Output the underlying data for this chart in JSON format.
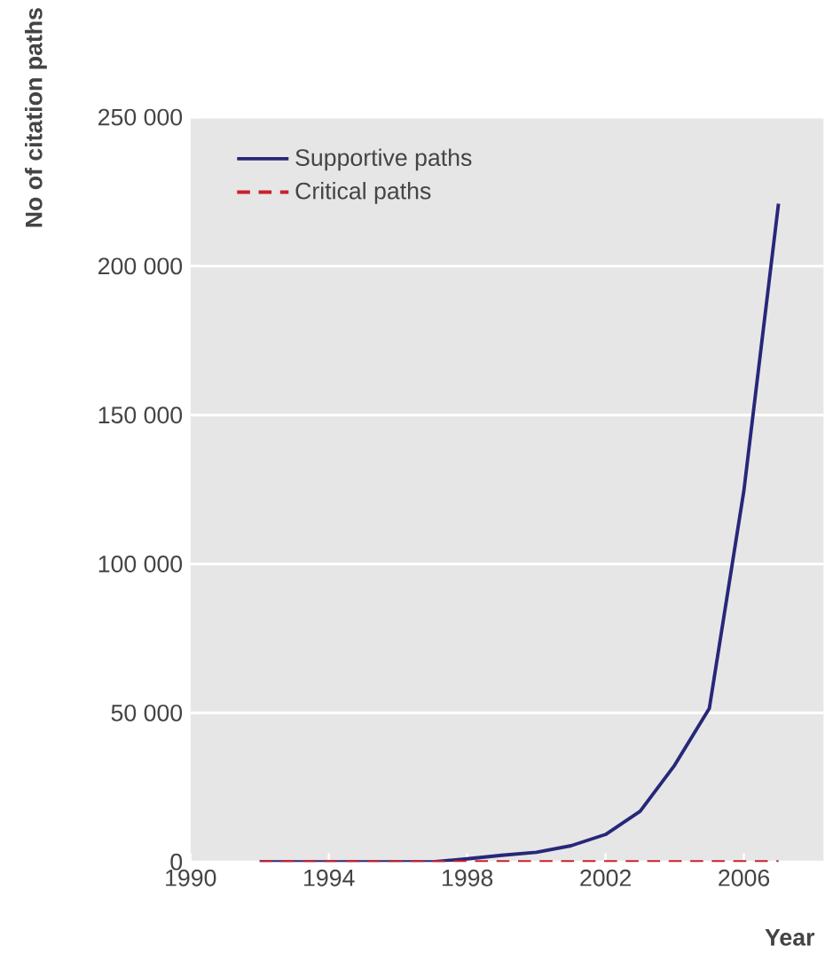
{
  "chart_data": {
    "type": "line",
    "xlabel": "Year",
    "ylabel": "No of citation paths",
    "x": [
      1992,
      1993,
      1994,
      1995,
      1996,
      1997,
      1998,
      1999,
      2000,
      2001,
      2002,
      2003,
      2004,
      2005,
      2006,
      2007
    ],
    "series": [
      {
        "name": "Supportive paths",
        "color": "#27277a",
        "line_style": "solid",
        "values": [
          0,
          0,
          0,
          0,
          0,
          0,
          1000,
          2200,
          3200,
          5400,
          9200,
          17000,
          32500,
          51500,
          124700,
          221000
        ]
      },
      {
        "name": "Critical paths",
        "color": "#c8202a",
        "line_style": "dashed",
        "values": [
          0,
          0,
          0,
          0,
          0,
          0,
          0,
          0,
          0,
          0,
          0,
          0,
          0,
          0,
          0,
          0
        ]
      }
    ],
    "xlim": [
      1990,
      2008.3
    ],
    "xticks": [
      1990,
      1994,
      1998,
      2002,
      2006
    ],
    "ylim": [
      0,
      250000
    ],
    "yticks": [
      {
        "value": 0,
        "label": "0"
      },
      {
        "value": 50000,
        "label": "50 000"
      },
      {
        "value": 100000,
        "label": "100 000"
      },
      {
        "value": 150000,
        "label": "150 000"
      },
      {
        "value": 200000,
        "label": "200 000"
      },
      {
        "value": 250000,
        "label": "250 000"
      }
    ],
    "grid": "y",
    "legend": "top left"
  }
}
